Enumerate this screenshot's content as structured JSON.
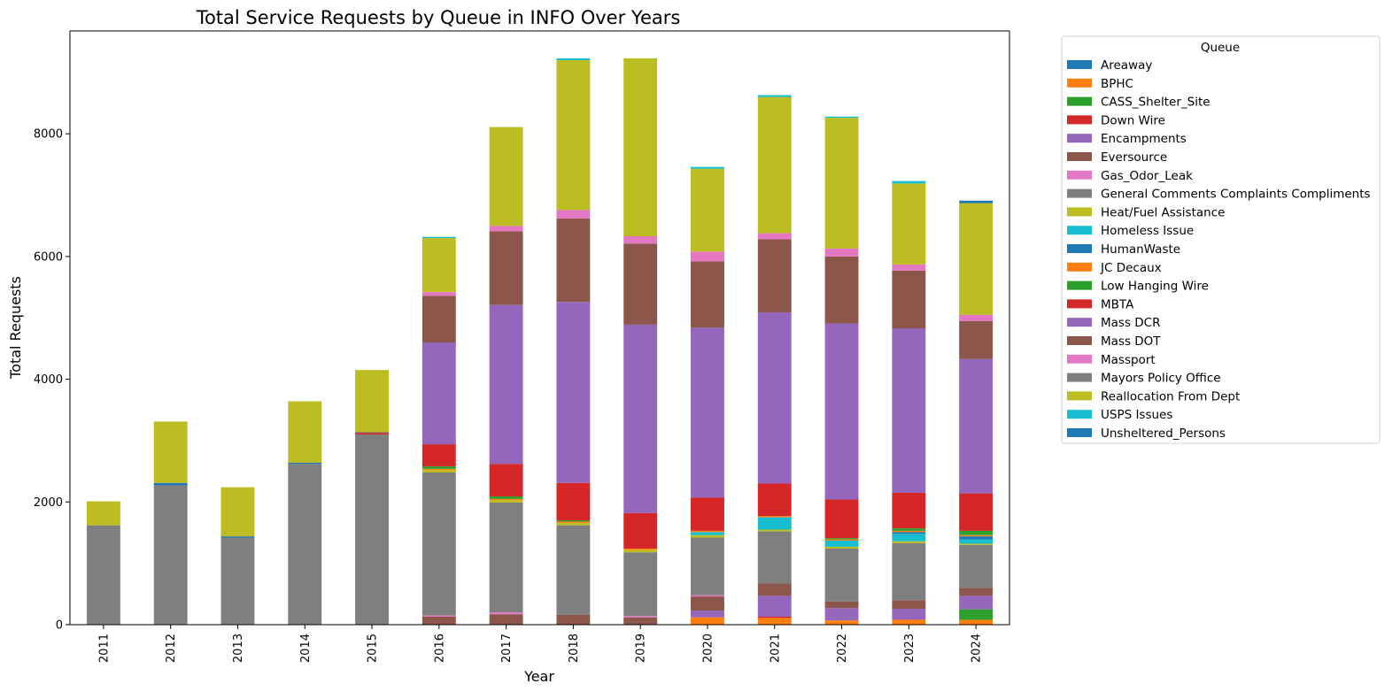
{
  "chart_data": {
    "type": "bar",
    "stacked": true,
    "title": "Total Service Requests by Queue in INFO Over Years",
    "xlabel": "Year",
    "ylabel": "Total Requests",
    "ylim": [
      0,
      9700
    ],
    "yticks": [
      0,
      2000,
      4000,
      6000,
      8000
    ],
    "grid": false,
    "legend_title": "Queue",
    "legend_position": "outside-right",
    "categories": [
      "2011",
      "2012",
      "2013",
      "2014",
      "2015",
      "2016",
      "2017",
      "2018",
      "2019",
      "2020",
      "2021",
      "2022",
      "2023",
      "2024"
    ],
    "series": [
      {
        "name": "Areaway",
        "color": "#1f77b4",
        "values": [
          0,
          0,
          0,
          0,
          0,
          0,
          0,
          0,
          0,
          0,
          0,
          0,
          0,
          0
        ]
      },
      {
        "name": "BPHC",
        "color": "#ff7f0e",
        "values": [
          0,
          0,
          0,
          0,
          0,
          0,
          0,
          0,
          0,
          120,
          110,
          70,
          80,
          80
        ]
      },
      {
        "name": "CASS_Shelter_Site",
        "color": "#2ca02c",
        "values": [
          0,
          0,
          0,
          0,
          0,
          0,
          0,
          0,
          0,
          0,
          0,
          0,
          0,
          170
        ]
      },
      {
        "name": "Down Wire",
        "color": "#d62728",
        "values": [
          0,
          0,
          0,
          0,
          0,
          0,
          0,
          0,
          0,
          0,
          20,
          0,
          0,
          0
        ]
      },
      {
        "name": "Encampments",
        "color": "#9467bd",
        "values": [
          0,
          0,
          0,
          0,
          0,
          0,
          0,
          0,
          0,
          110,
          340,
          200,
          180,
          220
        ]
      },
      {
        "name": "Eversource",
        "color": "#8c564b",
        "values": [
          0,
          0,
          0,
          0,
          0,
          130,
          170,
          160,
          120,
          230,
          200,
          110,
          140,
          130
        ]
      },
      {
        "name": "Gas_Odor_Leak",
        "color": "#e377c2",
        "values": [
          0,
          0,
          0,
          0,
          0,
          20,
          30,
          0,
          20,
          20,
          0,
          0,
          0,
          0
        ]
      },
      {
        "name": "General Comments Complaints Compliments",
        "color": "#7f7f7f",
        "values": [
          1620,
          2270,
          1420,
          2620,
          3100,
          2330,
          1790,
          1460,
          1040,
          940,
          850,
          860,
          930,
          700
        ]
      },
      {
        "name": "Heat/Fuel Assistance",
        "color": "#bcbd22",
        "values": [
          0,
          0,
          0,
          0,
          0,
          40,
          40,
          40,
          40,
          40,
          30,
          30,
          30,
          20
        ]
      },
      {
        "name": "Homeless Issue",
        "color": "#17becf",
        "values": [
          0,
          0,
          0,
          0,
          0,
          0,
          0,
          0,
          0,
          50,
          200,
          100,
          120,
          70
        ]
      },
      {
        "name": "HumanWaste",
        "color": "#1f77b4",
        "values": [
          0,
          40,
          20,
          20,
          0,
          0,
          0,
          0,
          0,
          0,
          0,
          0,
          30,
          50
        ]
      },
      {
        "name": "JC Decaux",
        "color": "#ff7f0e",
        "values": [
          0,
          0,
          0,
          0,
          0,
          20,
          20,
          20,
          20,
          20,
          20,
          20,
          20,
          20
        ]
      },
      {
        "name": "Low Hanging Wire",
        "color": "#2ca02c",
        "values": [
          0,
          0,
          0,
          0,
          0,
          40,
          40,
          20,
          0,
          0,
          0,
          20,
          40,
          70
        ]
      },
      {
        "name": "MBTA",
        "color": "#d62728",
        "values": [
          0,
          0,
          0,
          0,
          20,
          360,
          530,
          610,
          580,
          540,
          530,
          630,
          580,
          610
        ]
      },
      {
        "name": "Mass DCR",
        "color": "#9467bd",
        "values": [
          0,
          0,
          0,
          0,
          0,
          1660,
          2590,
          2950,
          3070,
          2770,
          2790,
          2870,
          2680,
          2190
        ]
      },
      {
        "name": "Mass DOT",
        "color": "#8c564b",
        "values": [
          0,
          0,
          0,
          0,
          20,
          760,
          1200,
          1360,
          1320,
          1080,
          1190,
          1090,
          940,
          620
        ]
      },
      {
        "name": "Massport",
        "color": "#e377c2",
        "values": [
          0,
          0,
          0,
          0,
          0,
          60,
          90,
          140,
          120,
          160,
          100,
          130,
          100,
          100
        ]
      },
      {
        "name": "Mayors Policy Office",
        "color": "#7f7f7f",
        "values": [
          0,
          0,
          0,
          0,
          0,
          0,
          0,
          0,
          0,
          0,
          0,
          0,
          0,
          0
        ]
      },
      {
        "name": "Reallocation From Dept",
        "color": "#bcbd22",
        "values": [
          390,
          1000,
          800,
          1000,
          1010,
          880,
          1610,
          2440,
          2900,
          1350,
          2220,
          2130,
          1320,
          1820
        ]
      },
      {
        "name": "USPS Issues",
        "color": "#17becf",
        "values": [
          0,
          0,
          0,
          0,
          0,
          20,
          0,
          30,
          0,
          30,
          30,
          20,
          40,
          0
        ]
      },
      {
        "name": "Unsheltered_Persons",
        "color": "#1f77b4",
        "values": [
          0,
          0,
          0,
          0,
          0,
          0,
          0,
          0,
          0,
          0,
          0,
          0,
          0,
          40
        ]
      }
    ]
  }
}
